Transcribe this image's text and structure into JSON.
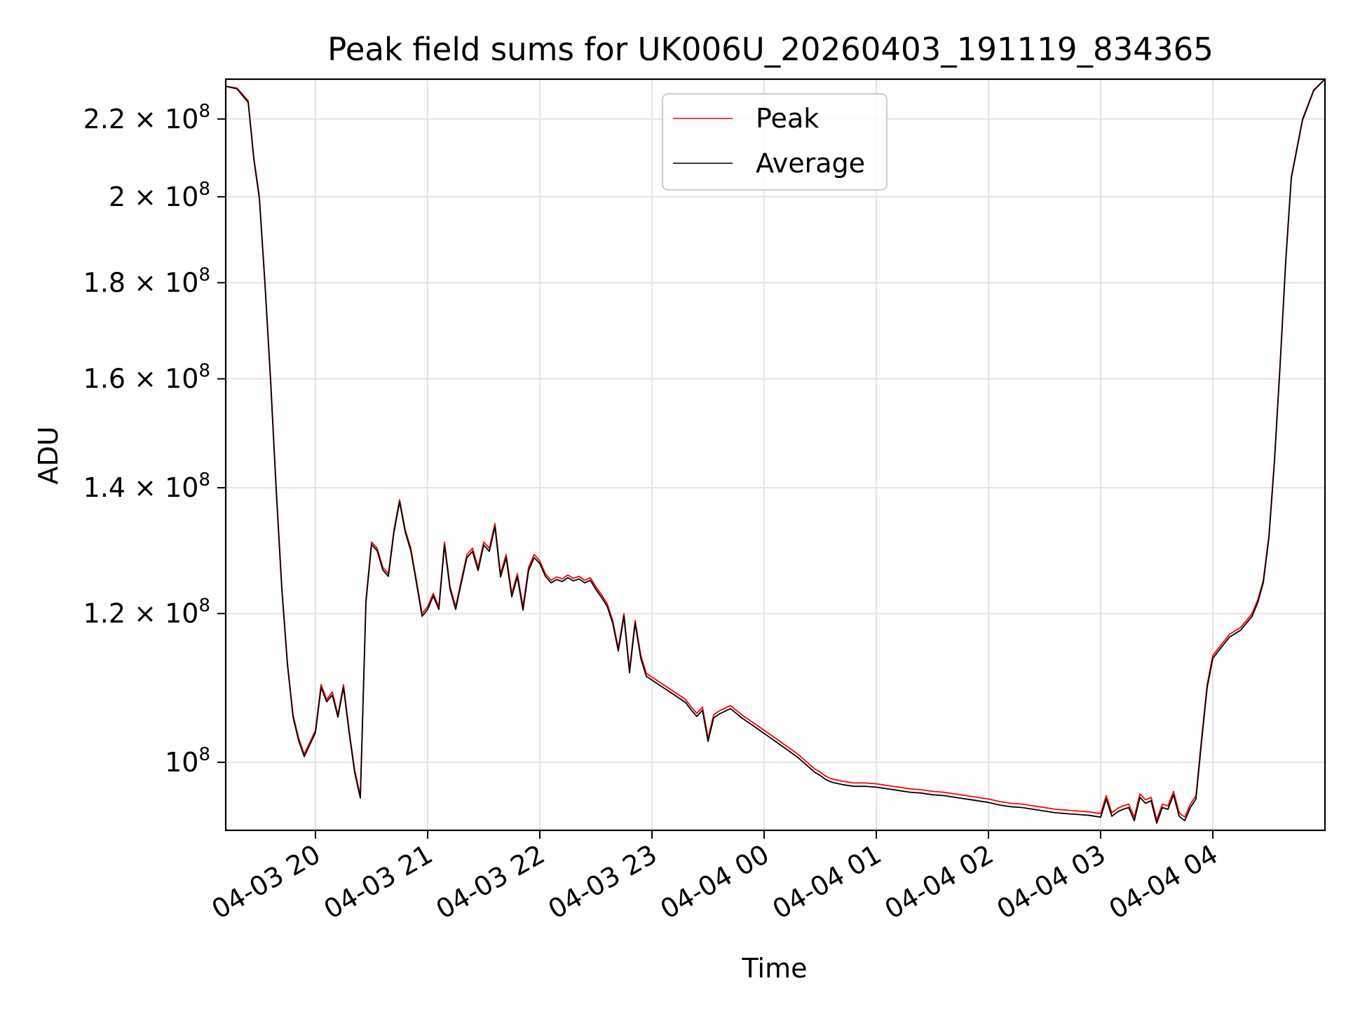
{
  "chart_data": {
    "type": "line",
    "title": "Peak field sums for UK006U_20260403_191119_834365",
    "xlabel": "Time",
    "ylabel": "ADU",
    "yscale": "log",
    "grid": true,
    "legend_position": "upper-center",
    "xlim": [
      19.2,
      29.0
    ],
    "ylim": [
      92000000,
      231000000
    ],
    "x_ticks": [
      {
        "value": 20,
        "label": "04-03 20"
      },
      {
        "value": 21,
        "label": "04-03 21"
      },
      {
        "value": 22,
        "label": "04-03 22"
      },
      {
        "value": 23,
        "label": "04-03 23"
      },
      {
        "value": 24,
        "label": "04-04 00"
      },
      {
        "value": 25,
        "label": "04-04 01"
      },
      {
        "value": 26,
        "label": "04-04 02"
      },
      {
        "value": 27,
        "label": "04-04 03"
      },
      {
        "value": 28,
        "label": "04-04 04"
      }
    ],
    "y_ticks": [
      {
        "value": 100000000,
        "mant": "",
        "exp": "8"
      },
      {
        "value": 120000000,
        "mant": "1.2",
        "exp": "8"
      },
      {
        "value": 140000000,
        "mant": "1.4",
        "exp": "8"
      },
      {
        "value": 160000000,
        "mant": "1.6",
        "exp": "8"
      },
      {
        "value": 180000000,
        "mant": "1.8",
        "exp": "8"
      },
      {
        "value": 200000000,
        "mant": "2",
        "exp": "8"
      },
      {
        "value": 220000000,
        "mant": "2.2",
        "exp": "8"
      }
    ],
    "y_tick_base": "10",
    "y_tick_times": "×",
    "x_unit": "hours since 2026-04-03 00:00",
    "series": [
      {
        "name": "Peak",
        "color": "#ff0000",
        "x": [
          19.2,
          19.3,
          19.4,
          19.45,
          19.5,
          19.55,
          19.6,
          19.65,
          19.7,
          19.75,
          19.8,
          19.85,
          19.9,
          19.95,
          20.0,
          20.05,
          20.1,
          20.15,
          20.2,
          20.25,
          20.3,
          20.35,
          20.4,
          20.45,
          20.5,
          20.55,
          20.6,
          20.65,
          20.7,
          20.75,
          20.8,
          20.85,
          20.9,
          20.95,
          21.0,
          21.05,
          21.1,
          21.15,
          21.2,
          21.25,
          21.3,
          21.35,
          21.4,
          21.45,
          21.5,
          21.55,
          21.6,
          21.65,
          21.7,
          21.75,
          21.8,
          21.85,
          21.9,
          21.95,
          22.0,
          22.05,
          22.1,
          22.15,
          22.2,
          22.25,
          22.3,
          22.35,
          22.4,
          22.45,
          22.5,
          22.55,
          22.6,
          22.65,
          22.7,
          22.75,
          22.8,
          22.85,
          22.9,
          22.95,
          23.0,
          23.1,
          23.2,
          23.25,
          23.3,
          23.35,
          23.4,
          23.45,
          23.5,
          23.55,
          23.6,
          23.7,
          23.8,
          23.9,
          24.0,
          24.1,
          24.2,
          24.3,
          24.4,
          24.45,
          24.5,
          24.55,
          24.6,
          24.7,
          24.8,
          24.9,
          25.0,
          25.1,
          25.2,
          25.3,
          25.4,
          25.5,
          25.6,
          25.7,
          25.8,
          25.9,
          26.0,
          26.1,
          26.2,
          26.3,
          26.4,
          26.5,
          26.6,
          26.7,
          26.8,
          26.9,
          27.0,
          27.05,
          27.1,
          27.15,
          27.2,
          27.25,
          27.3,
          27.35,
          27.4,
          27.45,
          27.5,
          27.55,
          27.6,
          27.65,
          27.7,
          27.75,
          27.8,
          27.85,
          27.9,
          27.95,
          28.0,
          28.05,
          28.1,
          28.15,
          28.2,
          28.25,
          28.3,
          28.35,
          28.4,
          28.45,
          28.5,
          28.55,
          28.6,
          28.65,
          28.7,
          28.8,
          28.9,
          29.0
        ],
        "y": [
          229000000,
          228500000,
          225000000,
          210000000,
          200000000,
          180000000,
          160000000,
          140000000,
          124000000,
          113000000,
          106000000,
          103000000,
          101000000,
          102500000,
          104000000,
          110000000,
          108000000,
          109000000,
          106000000,
          110000000,
          104000000,
          99000000,
          96000000,
          122000000,
          131000000,
          130000000,
          127000000,
          126000000,
          133000000,
          138000000,
          133000000,
          130000000,
          125000000,
          120000000,
          121000000,
          123000000,
          121000000,
          131000000,
          124000000,
          121000000,
          125000000,
          129000000,
          130000000,
          127000000,
          131000000,
          130000000,
          134000000,
          126000000,
          129000000,
          123000000,
          126000000,
          121000000,
          127000000,
          129000000,
          128000000,
          126000000,
          125000000,
          125500000,
          125200000,
          125800000,
          125300000,
          125600000,
          125000000,
          125400000,
          124000000,
          122800000,
          121500000,
          119000000,
          115000000,
          120000000,
          112000000,
          119000000,
          114000000,
          111500000,
          111000000,
          110000000,
          109000000,
          108500000,
          108000000,
          107000000,
          106200000,
          107000000,
          103000000,
          106000000,
          106500000,
          107200000,
          106000000,
          105000000,
          104000000,
          103000000,
          102000000,
          101000000,
          99800000,
          99200000,
          98800000,
          98300000,
          98000000,
          97700000,
          97500000,
          97500000,
          97400000,
          97200000,
          97000000,
          96800000,
          96700000,
          96500000,
          96400000,
          96200000,
          96000000,
          95800000,
          95600000,
          95300000,
          95100000,
          95000000,
          94800000,
          94600000,
          94400000,
          94300000,
          94200000,
          94100000,
          93900000,
          96000000,
          94000000,
          94500000,
          94800000,
          95000000,
          93500000,
          96200000,
          95500000,
          95800000,
          93200000,
          95000000,
          94800000,
          96500000,
          94000000,
          93500000,
          95000000,
          96000000,
          103000000,
          110000000,
          114000000,
          115000000,
          116000000,
          117000000,
          117500000,
          118000000,
          119000000,
          120000000,
          122000000,
          125000000,
          132000000,
          145000000,
          163000000,
          185000000,
          205000000,
          220000000,
          228000000,
          231000000
        ]
      },
      {
        "name": "Average",
        "color": "#000000",
        "x": [
          19.2,
          19.3,
          19.4,
          19.45,
          19.5,
          19.55,
          19.6,
          19.65,
          19.7,
          19.75,
          19.8,
          19.85,
          19.9,
          19.95,
          20.0,
          20.05,
          20.1,
          20.15,
          20.2,
          20.25,
          20.3,
          20.35,
          20.4,
          20.45,
          20.5,
          20.55,
          20.6,
          20.65,
          20.7,
          20.75,
          20.8,
          20.85,
          20.9,
          20.95,
          21.0,
          21.05,
          21.1,
          21.15,
          21.2,
          21.25,
          21.3,
          21.35,
          21.4,
          21.45,
          21.5,
          21.55,
          21.6,
          21.65,
          21.7,
          21.75,
          21.8,
          21.85,
          21.9,
          21.95,
          22.0,
          22.05,
          22.1,
          22.15,
          22.2,
          22.25,
          22.3,
          22.35,
          22.4,
          22.45,
          22.5,
          22.55,
          22.6,
          22.65,
          22.7,
          22.75,
          22.8,
          22.85,
          22.9,
          22.95,
          23.0,
          23.1,
          23.2,
          23.25,
          23.3,
          23.35,
          23.4,
          23.45,
          23.5,
          23.55,
          23.6,
          23.7,
          23.8,
          23.9,
          24.0,
          24.1,
          24.2,
          24.3,
          24.4,
          24.45,
          24.5,
          24.55,
          24.6,
          24.7,
          24.8,
          24.9,
          25.0,
          25.1,
          25.2,
          25.3,
          25.4,
          25.5,
          25.6,
          25.7,
          25.8,
          25.9,
          26.0,
          26.1,
          26.2,
          26.3,
          26.4,
          26.5,
          26.6,
          26.7,
          26.8,
          26.9,
          27.0,
          27.05,
          27.1,
          27.15,
          27.2,
          27.25,
          27.3,
          27.35,
          27.4,
          27.45,
          27.5,
          27.55,
          27.6,
          27.65,
          27.7,
          27.75,
          27.8,
          27.85,
          27.9,
          27.95,
          28.0,
          28.05,
          28.1,
          28.15,
          28.2,
          28.25,
          28.3,
          28.35,
          28.4,
          28.45,
          28.5,
          28.55,
          28.6,
          28.65,
          28.7,
          28.8,
          28.9,
          29.0
        ],
        "y": [
          229000000,
          228300000,
          224500000,
          209500000,
          199500000,
          179500000,
          159500000,
          139500000,
          123600000,
          112700000,
          105700000,
          102700000,
          100700000,
          102200000,
          103700000,
          109600000,
          107700000,
          108600000,
          105700000,
          109600000,
          103700000,
          98700000,
          95700000,
          121600000,
          130600000,
          129600000,
          126600000,
          125600000,
          132600000,
          137600000,
          132600000,
          129600000,
          124600000,
          119600000,
          120600000,
          122600000,
          120600000,
          130500000,
          123600000,
          120600000,
          124600000,
          128500000,
          129500000,
          126500000,
          130500000,
          129500000,
          133500000,
          125500000,
          128500000,
          122500000,
          125500000,
          120500000,
          126500000,
          128500000,
          127600000,
          125600000,
          124600000,
          125100000,
          124800000,
          125400000,
          124900000,
          125200000,
          124600000,
          125000000,
          123600000,
          122400000,
          121100000,
          118600000,
          114600000,
          119600000,
          111600000,
          118600000,
          113600000,
          111100000,
          110600000,
          109600000,
          108600000,
          108100000,
          107600000,
          106600000,
          105800000,
          106600000,
          102600000,
          105600000,
          106100000,
          106800000,
          105600000,
          104600000,
          103600000,
          102600000,
          101600000,
          100600000,
          99400000,
          98800000,
          98400000,
          97900000,
          97600000,
          97300000,
          97100000,
          97100000,
          97000000,
          96800000,
          96600000,
          96400000,
          96300000,
          96100000,
          96000000,
          95800000,
          95600000,
          95400000,
          95200000,
          94900000,
          94700000,
          94600000,
          94400000,
          94200000,
          94000000,
          93900000,
          93800000,
          93700000,
          93500000,
          95600000,
          93600000,
          94100000,
          94400000,
          94600000,
          93100000,
          95800000,
          95100000,
          95400000,
          92800000,
          94600000,
          94400000,
          96100000,
          93600000,
          93100000,
          94600000,
          95600000,
          102600000,
          109600000,
          113600000,
          114600000,
          115600000,
          116600000,
          117100000,
          117600000,
          118600000,
          119600000,
          121600000,
          124600000,
          131600000,
          144600000,
          162600000,
          184600000,
          204600000,
          219700000,
          227800000,
          231000000
        ]
      }
    ]
  }
}
